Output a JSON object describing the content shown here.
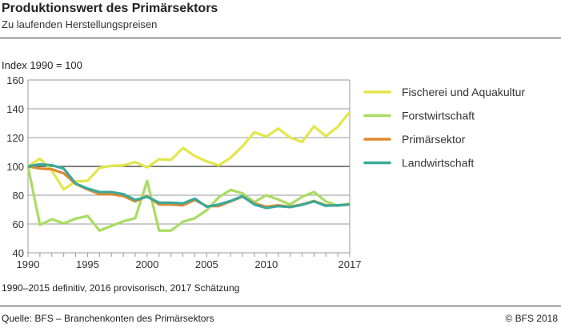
{
  "header": {
    "title": "Produktionswert des Primärsektors",
    "subtitle": "Zu laufenden Herstellungspreisen"
  },
  "footer": {
    "note": "1990–2015 definitiv, 2016 provisorisch, 2017 Schätzung",
    "source": "Quelle: BFS – Branchenkonten des Primärsektors",
    "copyright": "© BFS  2018"
  },
  "chart_data": {
    "type": "line",
    "title": "Produktionswert des Primärsektors",
    "subtitle": "Zu laufenden Herstellungspreisen",
    "ylabel": "Index 1990 = 100",
    "xlabel": "",
    "xlim": [
      1990,
      2017
    ],
    "ylim": [
      40,
      160
    ],
    "yticks": [
      40,
      60,
      80,
      100,
      120,
      140,
      160
    ],
    "xtick_labels": [
      1990,
      1995,
      2000,
      2005,
      2010,
      2017
    ],
    "grid": true,
    "legend_position": "right",
    "x": [
      1990,
      1991,
      1992,
      1993,
      1994,
      1995,
      1996,
      1997,
      1998,
      1999,
      2000,
      2001,
      2002,
      2003,
      2004,
      2005,
      2006,
      2007,
      2008,
      2009,
      2010,
      2011,
      2012,
      2013,
      2014,
      2015,
      2016,
      2017
    ],
    "series": [
      {
        "name": "Fischerei und Aquakultur",
        "color": "#e2e64a",
        "values": [
          100,
          105.4,
          97,
          84,
          89.6,
          90,
          99,
          100.4,
          100.7,
          103,
          99.3,
          105,
          104.5,
          112.8,
          107.2,
          103.5,
          100.7,
          106,
          114,
          123.7,
          120.7,
          126.3,
          120,
          117,
          127.8,
          121,
          127.6,
          137.8
        ]
      },
      {
        "name": "Forstwirtschaft",
        "color": "#a9dc62",
        "values": [
          100,
          59.4,
          63.3,
          60.4,
          63.7,
          65.6,
          55.4,
          58.7,
          61.9,
          64,
          90,
          55.4,
          55.4,
          61.6,
          64,
          69.6,
          78.5,
          83.7,
          81.3,
          75.2,
          80,
          77,
          73.5,
          78.9,
          82.2,
          75.7,
          72.6,
          74.3
        ]
      },
      {
        "name": "Primärsektor",
        "color": "#e08a30",
        "values": [
          100,
          98.5,
          98,
          95.2,
          87.8,
          84,
          80.7,
          80.7,
          79.4,
          75.7,
          79.4,
          73.5,
          73.5,
          73,
          76.7,
          72.4,
          72.4,
          75.7,
          79,
          74.3,
          72,
          73,
          72,
          73.6,
          76,
          73,
          73,
          73.5
        ]
      },
      {
        "name": "Landwirtschaft",
        "color": "#3ba99a",
        "values": [
          100,
          101.5,
          100.8,
          98.5,
          88.1,
          84.6,
          82.2,
          82.2,
          80.7,
          76.7,
          78.9,
          74.8,
          74.8,
          74.3,
          77.6,
          72,
          73.5,
          76,
          79.3,
          73.5,
          71.1,
          72.4,
          71.7,
          73.3,
          75.7,
          72.6,
          73,
          73.5
        ]
      }
    ]
  }
}
